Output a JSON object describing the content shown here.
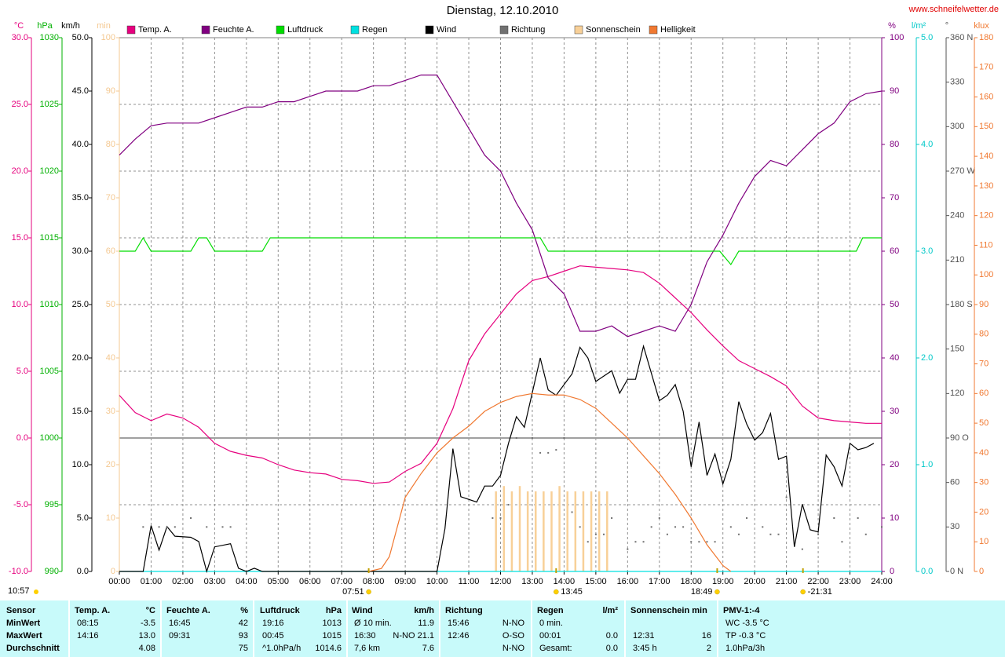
{
  "chart_data": {
    "type": "line",
    "title": "Dienstag, 12.10.2010",
    "source": "www.schneifelwetter.de",
    "time_label": "10:57",
    "xlim": [
      0,
      24
    ],
    "xticks": [
      {
        "value": 0,
        "label": "00:00"
      },
      {
        "value": 1,
        "label": "01:00"
      },
      {
        "value": 2,
        "label": "02:00"
      },
      {
        "value": 3,
        "label": "03:00"
      },
      {
        "value": 4,
        "label": "04:00"
      },
      {
        "value": 5,
        "label": "05:00"
      },
      {
        "value": 6,
        "label": "06:00"
      },
      {
        "value": 7,
        "label": "07:00"
      },
      {
        "value": 8,
        "label": "08:00"
      },
      {
        "value": 9,
        "label": "09:00"
      },
      {
        "value": 10,
        "label": "10:00"
      },
      {
        "value": 11,
        "label": "11:00"
      },
      {
        "value": 12,
        "label": "12:00"
      },
      {
        "value": 13,
        "label": "13:00"
      },
      {
        "value": 14,
        "label": "14:00"
      },
      {
        "value": 15,
        "label": "15:00"
      },
      {
        "value": 16,
        "label": "16:00"
      },
      {
        "value": 17,
        "label": "17:00"
      },
      {
        "value": 18,
        "label": "18:00"
      },
      {
        "value": 19,
        "label": "19:00"
      },
      {
        "value": 20,
        "label": "20:00"
      },
      {
        "value": 21,
        "label": "21:00"
      },
      {
        "value": 22,
        "label": "22:00"
      },
      {
        "value": 23,
        "label": "23:00"
      },
      {
        "value": 24,
        "label": "24:00"
      }
    ],
    "grid": true,
    "axes": [
      {
        "unit": "°C",
        "color": "#e6007e",
        "lim": [
          -10,
          30
        ],
        "ticks": [
          {
            "value": -10,
            "label": "-10.0"
          },
          {
            "value": -5,
            "label": "-5.0"
          },
          {
            "value": 0,
            "label": "0.0"
          },
          {
            "value": 5,
            "label": "5.0"
          },
          {
            "value": 10,
            "label": "10.0"
          },
          {
            "value": 15,
            "label": "15.0"
          },
          {
            "value": 20,
            "label": "20.0"
          },
          {
            "value": 25,
            "label": "25.0"
          },
          {
            "value": 30,
            "label": "30.0"
          }
        ]
      },
      {
        "unit": "hPa",
        "color": "#00b000",
        "lim": [
          990,
          1030
        ],
        "ticks": [
          990,
          995,
          1000,
          1005,
          1010,
          1015,
          1020,
          1025,
          1030
        ]
      },
      {
        "unit": "km/h",
        "color": "#000000",
        "lim": [
          0,
          50
        ],
        "ticks": [
          {
            "value": 0,
            "label": "0.0"
          },
          {
            "value": 5,
            "label": "5.0"
          },
          {
            "value": 10,
            "label": "10.0"
          },
          {
            "value": 15,
            "label": "15.0"
          },
          {
            "value": 20,
            "label": "20.0"
          },
          {
            "value": 25,
            "label": "25.0"
          },
          {
            "value": 30,
            "label": "30.0"
          },
          {
            "value": 35,
            "label": "35.0"
          },
          {
            "value": 40,
            "label": "40.0"
          },
          {
            "value": 45,
            "label": "45.0"
          },
          {
            "value": 50,
            "label": "50.0"
          }
        ]
      },
      {
        "unit": "min",
        "color": "#f4c890",
        "lim": [
          0,
          100
        ],
        "ticks": [
          0,
          10,
          20,
          30,
          40,
          50,
          60,
          70,
          80,
          90,
          100
        ]
      },
      {
        "unit": "%",
        "color": "#800080",
        "lim": [
          0,
          100
        ],
        "ticks": [
          0,
          10,
          20,
          30,
          40,
          50,
          60,
          70,
          80,
          90,
          100
        ]
      },
      {
        "unit": "l/m²",
        "color": "#00c8c8",
        "lim": [
          0,
          5
        ],
        "ticks": [
          {
            "value": 0,
            "label": "0.0"
          },
          {
            "value": 1,
            "label": "1.0"
          },
          {
            "value": 2,
            "label": "2.0"
          },
          {
            "value": 3,
            "label": "3.0"
          },
          {
            "value": 4,
            "label": "4.0"
          },
          {
            "value": 5,
            "label": "5.0"
          }
        ]
      },
      {
        "unit": "°",
        "color": "#505050",
        "lim": [
          0,
          360
        ],
        "ticks": [
          {
            "value": 0,
            "label": "0 N"
          },
          30,
          60,
          {
            "value": 90,
            "label": "90 O"
          },
          120,
          150,
          {
            "value": 180,
            "label": "180 S"
          },
          210,
          240,
          {
            "value": 270,
            "label": "270 W"
          },
          300,
          330,
          {
            "value": 360,
            "label": "360 N"
          }
        ]
      },
      {
        "unit": "klux",
        "color": "#f07830",
        "lim": [
          0,
          180
        ],
        "ticks": [
          0,
          10,
          20,
          30,
          40,
          50,
          60,
          70,
          80,
          90,
          100,
          110,
          120,
          130,
          140,
          150,
          160,
          170,
          180
        ]
      }
    ],
    "x": [
      0,
      0.5,
      1,
      1.5,
      2,
      2.5,
      3,
      3.5,
      4,
      4.5,
      5,
      5.5,
      6,
      6.5,
      7,
      7.5,
      8,
      8.5,
      9,
      9.5,
      10,
      10.5,
      11,
      11.5,
      12,
      12.5,
      13,
      13.5,
      14,
      14.5,
      15,
      15.5,
      16,
      16.5,
      17,
      17.5,
      18,
      18.5,
      19,
      19.5,
      20,
      20.5,
      21,
      21.5,
      22,
      22.5,
      23,
      23.5,
      24
    ],
    "series": [
      {
        "name": "Temp. A.",
        "color": "#e6007e",
        "axis": "°C",
        "type": "line",
        "values": [
          3.2,
          1.9,
          1.3,
          1.8,
          1.5,
          0.8,
          -0.4,
          -1.0,
          -1.3,
          -1.5,
          -2.0,
          -2.4,
          -2.6,
          -2.7,
          -3.1,
          -3.2,
          -3.4,
          -3.3,
          -2.5,
          -1.9,
          -0.4,
          2.2,
          5.8,
          7.8,
          9.3,
          10.8,
          11.8,
          12.1,
          12.5,
          12.9,
          12.8,
          12.7,
          12.6,
          12.4,
          11.6,
          10.5,
          9.4,
          8.1,
          6.9,
          5.8,
          5.2,
          4.6,
          3.9,
          2.4,
          1.5,
          1.3,
          1.2,
          1.1,
          1.1
        ]
      },
      {
        "name": "Feuchte A.",
        "color": "#800080",
        "axis": "%",
        "type": "line",
        "values": [
          78,
          81,
          83.5,
          84,
          84,
          84,
          85,
          86,
          87,
          87,
          88,
          88,
          89,
          90,
          90,
          90,
          91,
          91,
          92,
          93,
          93,
          88,
          83,
          78,
          75,
          69,
          64,
          55,
          52,
          45,
          45,
          46,
          44,
          45,
          46,
          45,
          50,
          58,
          63,
          69,
          74,
          77,
          76,
          79,
          82,
          84,
          88,
          89.5,
          90
        ]
      },
      {
        "name": "Luftdruck",
        "color": "#00dd00",
        "axis": "hPa",
        "type": "line",
        "x": [
          0,
          0.5,
          0.75,
          1,
          2.25,
          2.5,
          2.75,
          3,
          4.5,
          4.75,
          13.25,
          13.5,
          18.9,
          19.25,
          19.5,
          23.2,
          23.4,
          24
        ],
        "values": [
          1014,
          1014,
          1015,
          1014,
          1014,
          1015,
          1015,
          1014,
          1014,
          1015,
          1015,
          1014,
          1014,
          1013,
          1014,
          1014,
          1015,
          1015
        ]
      },
      {
        "name": "Regen",
        "color": "#00e0e0",
        "axis": "l/m²",
        "type": "line",
        "x": [
          0,
          24
        ],
        "values": [
          0,
          0
        ]
      },
      {
        "name": "Wind",
        "color": "#000000",
        "axis": "km/h",
        "type": "line",
        "x": [
          0,
          0.75,
          1,
          1.25,
          1.5,
          1.75,
          2.25,
          2.5,
          2.75,
          3,
          3.5,
          3.75,
          4,
          4.25,
          4.5,
          10,
          10.25,
          10.5,
          10.75,
          11.25,
          11.5,
          11.75,
          12,
          12.25,
          12.5,
          12.75,
          13.25,
          13.5,
          13.75,
          14.25,
          14.5,
          14.75,
          15,
          15.5,
          15.75,
          16,
          16.25,
          16.5,
          17,
          17.25,
          17.5,
          17.75,
          18,
          18.25,
          18.5,
          18.75,
          19,
          19.25,
          19.5,
          19.75,
          20,
          20.25,
          20.5,
          20.75,
          21,
          21.25,
          21.5,
          21.75,
          22,
          22.25,
          22.5,
          22.75,
          23,
          23.25,
          23.5,
          23.75
        ],
        "values": [
          0,
          0,
          4.3,
          2,
          4.2,
          3.3,
          3.2,
          2.8,
          0,
          2.3,
          2.6,
          0.3,
          0,
          0.3,
          0,
          0,
          4,
          11.5,
          7,
          6.5,
          8,
          8,
          9,
          12,
          14.5,
          13.5,
          20,
          17,
          16.5,
          18.5,
          21,
          20,
          17.8,
          18.8,
          16.7,
          18,
          18,
          21.1,
          16,
          16.5,
          17.5,
          15,
          9.8,
          14,
          9,
          11,
          8.2,
          10.5,
          15.9,
          13.8,
          12.3,
          13,
          14.8,
          10.5,
          10.8,
          2.3,
          6.3,
          3.9,
          3.7,
          10.9,
          9.8,
          8,
          12,
          11.4,
          11.6,
          12
        ]
      },
      {
        "name": "Richtung",
        "color": "#707070",
        "axis": "°",
        "type": "scatter",
        "x": [
          0.75,
          1.25,
          1.5,
          1.75,
          2.25,
          2.75,
          3.25,
          3.5,
          11.75,
          12,
          12.25,
          12.5,
          13,
          13.25,
          13.5,
          13.75,
          14,
          14.25,
          14.5,
          14.75,
          15,
          15.25,
          15.5,
          16,
          16.25,
          16.5,
          16.75,
          17,
          17.25,
          17.5,
          17.75,
          18,
          18.25,
          18.5,
          18.75,
          19.25,
          19.5,
          19.75,
          20.25,
          20.5,
          20.75,
          21,
          21.5,
          22,
          22.5,
          22.75,
          23.25,
          23.5,
          24
        ],
        "values": [
          30,
          30,
          30,
          30,
          36,
          30,
          30,
          30,
          36,
          36,
          45,
          90,
          90,
          80,
          80,
          82,
          90,
          40,
          30,
          20,
          25,
          25,
          36,
          15,
          20,
          20,
          30,
          36,
          25,
          30,
          30,
          20,
          20,
          20,
          20,
          30,
          25,
          36,
          30,
          25,
          25,
          50,
          15,
          25,
          36,
          20,
          36,
          25,
          30
        ]
      },
      {
        "name": "Sonnenschein",
        "color": "#f8d098",
        "axis": "min",
        "type": "bar",
        "x": [
          11.85,
          12.1,
          12.35,
          12.6,
          12.85,
          13.1,
          13.35,
          13.6,
          13.85,
          14.1,
          14.35,
          14.6,
          14.85,
          15.1,
          15.35
        ],
        "values": [
          15,
          16,
          15,
          16,
          15,
          15,
          15,
          15,
          16,
          15,
          15,
          15,
          15,
          15,
          15
        ]
      },
      {
        "name": "Helligkeit",
        "color": "#f07830",
        "axis": "klux",
        "type": "line",
        "x": [
          7.85,
          8.25,
          8.5,
          8.75,
          9,
          9.5,
          10,
          10.5,
          11,
          11.5,
          12,
          12.5,
          13,
          13.5,
          14,
          14.5,
          15,
          15.5,
          16,
          16.5,
          17,
          17.5,
          18,
          18.5,
          19,
          19.25
        ],
        "values": [
          0,
          1,
          5,
          15,
          25,
          33,
          40,
          45,
          49,
          54,
          57,
          59,
          60,
          59.5,
          59.5,
          58,
          55,
          50,
          45,
          39,
          33,
          26,
          18,
          9,
          2,
          0
        ]
      }
    ],
    "annotations": [
      {
        "text": "07:51",
        "x": 7.85
      },
      {
        "text": "13:45",
        "x": 13.75
      },
      {
        "text": "18:49",
        "x": 18.82
      },
      {
        "text": "-21:31",
        "x": 21.52
      }
    ]
  },
  "table": {
    "row_labels": [
      "Sensor",
      "MinWert",
      "MaxWert",
      "Durchschnitt"
    ],
    "columns": [
      {
        "header": "Temp. A.",
        "unit": "°C",
        "rows": [
          [
            "08:15",
            "-3.5"
          ],
          [
            "14:16",
            "13.0"
          ],
          [
            null,
            "4.08"
          ]
        ]
      },
      {
        "header": "Feuchte A.",
        "unit": "%",
        "rows": [
          [
            "16:45",
            "42"
          ],
          [
            "09:31",
            "93"
          ],
          [
            null,
            "75"
          ]
        ]
      },
      {
        "header": "Luftdruck",
        "unit": "hPa",
        "rows": [
          [
            "19:16",
            "1013"
          ],
          [
            "00:45",
            "1015"
          ],
          [
            "^1.0hPa/h",
            "1014.6"
          ]
        ]
      },
      {
        "header": "Wind",
        "unit": "km/h",
        "rows": [
          [
            "Ø 10 min.",
            "11.9"
          ],
          [
            "16:30",
            "N-NO 21.1"
          ],
          [
            "7,6 km",
            "7.6"
          ]
        ]
      },
      {
        "header": "Richtung",
        "unit": null,
        "rows": [
          [
            "15:46",
            "N-NO"
          ],
          [
            "12:46",
            "O-SO"
          ],
          [
            null,
            "N-NO"
          ]
        ]
      },
      {
        "header": "Regen",
        "unit": "l/m²",
        "rows": [
          [
            "0 min.",
            null
          ],
          [
            "00:01",
            "0.0"
          ],
          [
            "Gesamt:",
            "0.0"
          ]
        ]
      },
      {
        "header": "Sonnenschein min",
        "unit": null,
        "rows": [
          [
            null,
            null
          ],
          [
            "12:31",
            "16"
          ],
          [
            "3:45 h",
            "2"
          ]
        ]
      },
      {
        "header": "PMV-1:-4",
        "unit": null,
        "rows": [
          [
            "WC -3.5 °C",
            null
          ],
          [
            "TP -0.3 °C",
            null
          ],
          [
            "1.0hPa/3h",
            null
          ]
        ]
      }
    ]
  }
}
